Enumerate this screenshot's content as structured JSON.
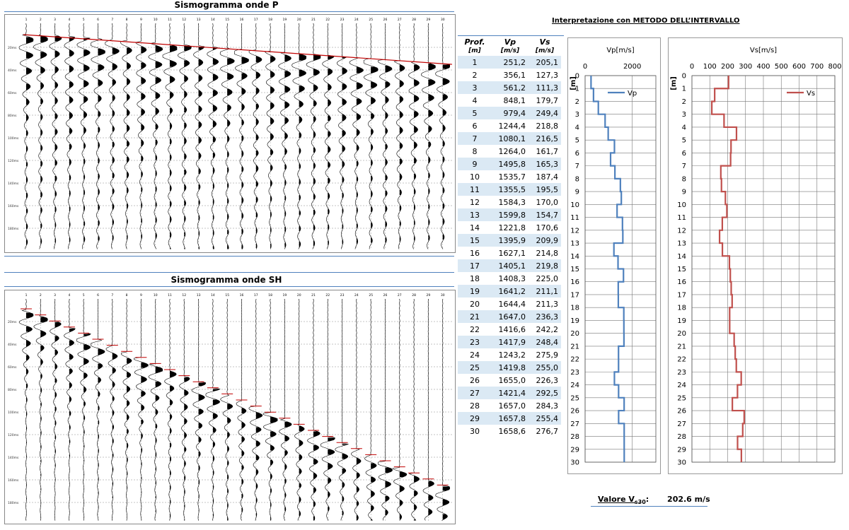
{
  "seismograms": {
    "p_title": "Sismogramma onde P",
    "sh_title": "Sismogramma onde SH",
    "trace_labels": [
      "1",
      "2",
      "3",
      "4",
      "5",
      "6",
      "7",
      "8",
      "9",
      "10",
      "11",
      "12",
      "13",
      "14",
      "15",
      "16",
      "17",
      "18",
      "19",
      "20",
      "21",
      "22",
      "23",
      "24",
      "25",
      "26",
      "27",
      "28",
      "29",
      "30"
    ],
    "time_labels": [
      "20ms",
      "40ms",
      "60ms",
      "80ms",
      "100ms",
      "120ms",
      "140ms",
      "160ms",
      "180ms"
    ],
    "colors": {
      "trace": "#000000",
      "pick_line": "#c00000",
      "grid": "#888888"
    }
  },
  "interpretation": {
    "title": "Interpretazione con METODO DELL’INTERVALLO",
    "col_depth": "Prof.",
    "col_depth_unit": "[m]",
    "col_vp": "Vp",
    "col_vp_unit": "[m/s]",
    "col_vs": "Vs",
    "col_vs_unit": "[m/s]",
    "rows": [
      {
        "depth": "1",
        "vp": "251,2",
        "vs": "205,1"
      },
      {
        "depth": "2",
        "vp": "356,1",
        "vs": "127,3"
      },
      {
        "depth": "3",
        "vp": "561,2",
        "vs": "111,3"
      },
      {
        "depth": "4",
        "vp": "848,1",
        "vs": "179,7"
      },
      {
        "depth": "5",
        "vp": "979,4",
        "vs": "249,4"
      },
      {
        "depth": "6",
        "vp": "1244,4",
        "vs": "218,8"
      },
      {
        "depth": "7",
        "vp": "1080,1",
        "vs": "216,5"
      },
      {
        "depth": "8",
        "vp": "1264,0",
        "vs": "161,7"
      },
      {
        "depth": "9",
        "vp": "1495,8",
        "vs": "165,3"
      },
      {
        "depth": "10",
        "vp": "1535,7",
        "vs": "187,4"
      },
      {
        "depth": "11",
        "vp": "1355,5",
        "vs": "195,5"
      },
      {
        "depth": "12",
        "vp": "1584,3",
        "vs": "170,0"
      },
      {
        "depth": "13",
        "vp": "1599,8",
        "vs": "154,7"
      },
      {
        "depth": "14",
        "vp": "1221,8",
        "vs": "170,6"
      },
      {
        "depth": "15",
        "vp": "1395,9",
        "vs": "209,9"
      },
      {
        "depth": "16",
        "vp": "1627,1",
        "vs": "214,8"
      },
      {
        "depth": "17",
        "vp": "1405,1",
        "vs": "219,8"
      },
      {
        "depth": "18",
        "vp": "1408,3",
        "vs": "225,0"
      },
      {
        "depth": "19",
        "vp": "1641,2",
        "vs": "211,1"
      },
      {
        "depth": "20",
        "vp": "1644,4",
        "vs": "211,3"
      },
      {
        "depth": "21",
        "vp": "1647,0",
        "vs": "236,3"
      },
      {
        "depth": "22",
        "vp": "1416,6",
        "vs": "242,2"
      },
      {
        "depth": "23",
        "vp": "1417,9",
        "vs": "248,4"
      },
      {
        "depth": "24",
        "vp": "1243,2",
        "vs": "275,9"
      },
      {
        "depth": "25",
        "vp": "1419,8",
        "vs": "255,0"
      },
      {
        "depth": "26",
        "vp": "1655,0",
        "vs": "226,3"
      },
      {
        "depth": "27",
        "vp": "1421,4",
        "vs": "292,5"
      },
      {
        "depth": "28",
        "vp": "1657,0",
        "vs": "284,3"
      },
      {
        "depth": "29",
        "vp": "1657,8",
        "vs": "255,4"
      },
      {
        "depth": "30",
        "vp": "1658,6",
        "vs": "276,7"
      }
    ]
  },
  "summary": {
    "label": "Valore V",
    "label_sub": "s30",
    "label_suffix": ":",
    "value": "202.6 m/s"
  },
  "chart_data": [
    {
      "type": "line",
      "title": "Vp[m/s]",
      "ylabel": "[m]",
      "y_inverted": true,
      "ylim": [
        0,
        30
      ],
      "xlim": [
        0,
        3000
      ],
      "x_ticks": [
        0,
        2000
      ],
      "y_ticks": [
        0,
        1,
        2,
        3,
        4,
        5,
        6,
        7,
        8,
        9,
        10,
        11,
        12,
        13,
        14,
        15,
        16,
        17,
        18,
        19,
        20,
        21,
        22,
        23,
        24,
        25,
        26,
        27,
        28,
        29,
        30
      ],
      "grid": true,
      "legend": "top-right",
      "series": [
        {
          "name": "Vp",
          "color": "#4f81bd",
          "depth": [
            1,
            2,
            3,
            4,
            5,
            6,
            7,
            8,
            9,
            10,
            11,
            12,
            13,
            14,
            15,
            16,
            17,
            18,
            19,
            20,
            21,
            22,
            23,
            24,
            25,
            26,
            27,
            28,
            29,
            30
          ],
          "values": [
            251.2,
            356.1,
            561.2,
            848.1,
            979.4,
            1244.4,
            1080.1,
            1264.0,
            1495.8,
            1535.7,
            1355.5,
            1584.3,
            1599.8,
            1221.8,
            1395.9,
            1627.1,
            1405.1,
            1408.3,
            1641.2,
            1644.4,
            1647.0,
            1416.6,
            1417.9,
            1243.2,
            1419.8,
            1655.0,
            1421.4,
            1657.0,
            1657.8,
            1658.6
          ]
        }
      ]
    },
    {
      "type": "line",
      "title": "Vs[m/s]",
      "ylabel": "[m]",
      "y_inverted": true,
      "ylim": [
        0,
        30
      ],
      "xlim": [
        0,
        800
      ],
      "x_ticks": [
        0,
        100,
        200,
        300,
        400,
        500,
        600,
        700,
        800
      ],
      "y_ticks": [
        0,
        1,
        2,
        3,
        4,
        5,
        6,
        7,
        8,
        9,
        10,
        11,
        12,
        13,
        14,
        15,
        16,
        17,
        18,
        19,
        20,
        21,
        22,
        23,
        24,
        25,
        26,
        27,
        28,
        29,
        30
      ],
      "grid": true,
      "legend": "top-right",
      "series": [
        {
          "name": "Vs",
          "color": "#c0504d",
          "depth": [
            1,
            2,
            3,
            4,
            5,
            6,
            7,
            8,
            9,
            10,
            11,
            12,
            13,
            14,
            15,
            16,
            17,
            18,
            19,
            20,
            21,
            22,
            23,
            24,
            25,
            26,
            27,
            28,
            29,
            30
          ],
          "values": [
            205.1,
            127.3,
            111.3,
            179.7,
            249.4,
            218.8,
            216.5,
            161.7,
            165.3,
            187.4,
            195.5,
            170.0,
            154.7,
            170.6,
            209.9,
            214.8,
            219.8,
            225.0,
            211.1,
            211.3,
            236.3,
            242.2,
            248.4,
            275.9,
            255.0,
            226.3,
            292.5,
            284.3,
            255.4,
            276.7
          ]
        }
      ]
    }
  ]
}
